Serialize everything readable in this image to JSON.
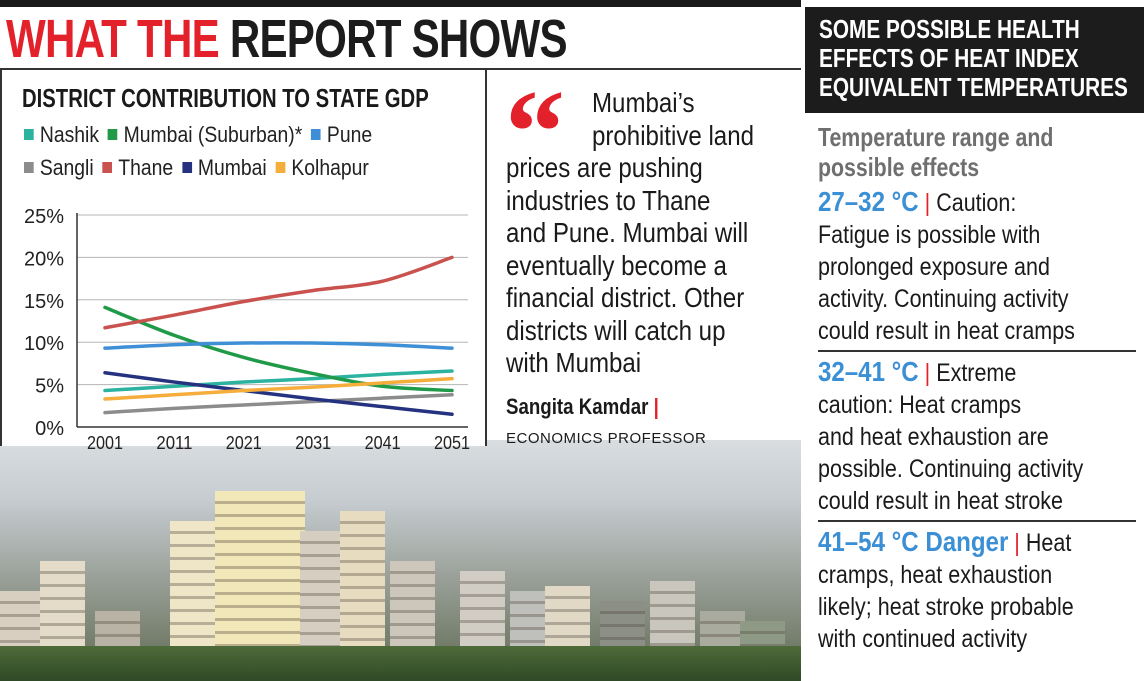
{
  "headline": {
    "red": "WHAT THE",
    "dark": "REPORT SHOWS"
  },
  "chart_data": {
    "type": "line",
    "title": "DISTRICT CONTRIBUTION TO STATE GDP",
    "x": [
      2001,
      2011,
      2021,
      2031,
      2041,
      2051
    ],
    "xticks": [
      "2001",
      "2011",
      "2021",
      "2031",
      "2041",
      "2051"
    ],
    "yticks": [
      "0%",
      "5%",
      "10%",
      "15%",
      "20%",
      "25%"
    ],
    "ylim": [
      0,
      25
    ],
    "grid": true,
    "legend_position": "top",
    "series": [
      {
        "name": "Nashik",
        "color": "#2bb3a0",
        "values": [
          4.3,
          4.8,
          5.3,
          5.7,
          6.2,
          6.6
        ]
      },
      {
        "name": "Mumbai (Suburban)*",
        "color": "#1f9a48",
        "values": [
          14.1,
          10.8,
          8.2,
          6.3,
          4.8,
          4.3
        ]
      },
      {
        "name": "Pune",
        "color": "#3f8fd6",
        "values": [
          9.3,
          9.7,
          9.9,
          9.9,
          9.7,
          9.3
        ]
      },
      {
        "name": "Sangli",
        "color": "#8c8c8c",
        "values": [
          1.7,
          2.2,
          2.6,
          3.0,
          3.4,
          3.8
        ]
      },
      {
        "name": "Thane",
        "color": "#c9524e",
        "values": [
          11.7,
          13.2,
          14.8,
          16.1,
          17.2,
          20.0
        ]
      },
      {
        "name": "Mumbai",
        "color": "#25327f",
        "values": [
          6.4,
          5.3,
          4.3,
          3.3,
          2.4,
          1.5
        ]
      },
      {
        "name": "Kolhapur",
        "color": "#f5ad3c",
        "values": [
          3.3,
          3.8,
          4.3,
          4.7,
          5.2,
          5.7
        ]
      }
    ]
  },
  "quote": {
    "lines": [
      "Mumbai’s",
      "prohibitive land",
      "prices are pushing",
      "industries to Thane",
      "and Pune. Mumbai will",
      "eventually become a",
      "financial district. Other",
      "districts will catch up",
      "with Mumbai"
    ],
    "author": "Sangita Kamdar",
    "role": "ECONOMICS PROFESSOR"
  },
  "health": {
    "title_lines": [
      "SOME POSSIBLE HEALTH",
      "EFFECTS OF HEAT INDEX",
      "EQUIVALENT TEMPERATURES"
    ],
    "subtitle_lines": [
      "Temperature range and",
      "possible effects"
    ],
    "sections": [
      {
        "range": "27–32 °C",
        "first": "Caution:",
        "lines": [
          "Fatigue is possible with",
          "prolonged exposure and",
          "activity. Continuing activity",
          "could result in heat cramps"
        ]
      },
      {
        "range": "32–41 °C",
        "first": "Extreme",
        "lines": [
          "caution: Heat cramps",
          "and heat exhaustion are",
          "possible. Continuing activity",
          "could result in heat stroke"
        ]
      },
      {
        "range": "41–54 °C Danger",
        "first": "Heat",
        "lines": [
          "cramps, heat exhaustion",
          "likely; heat stroke probable",
          "with continued activity"
        ]
      }
    ],
    "range_color": "#3b8fd4"
  }
}
